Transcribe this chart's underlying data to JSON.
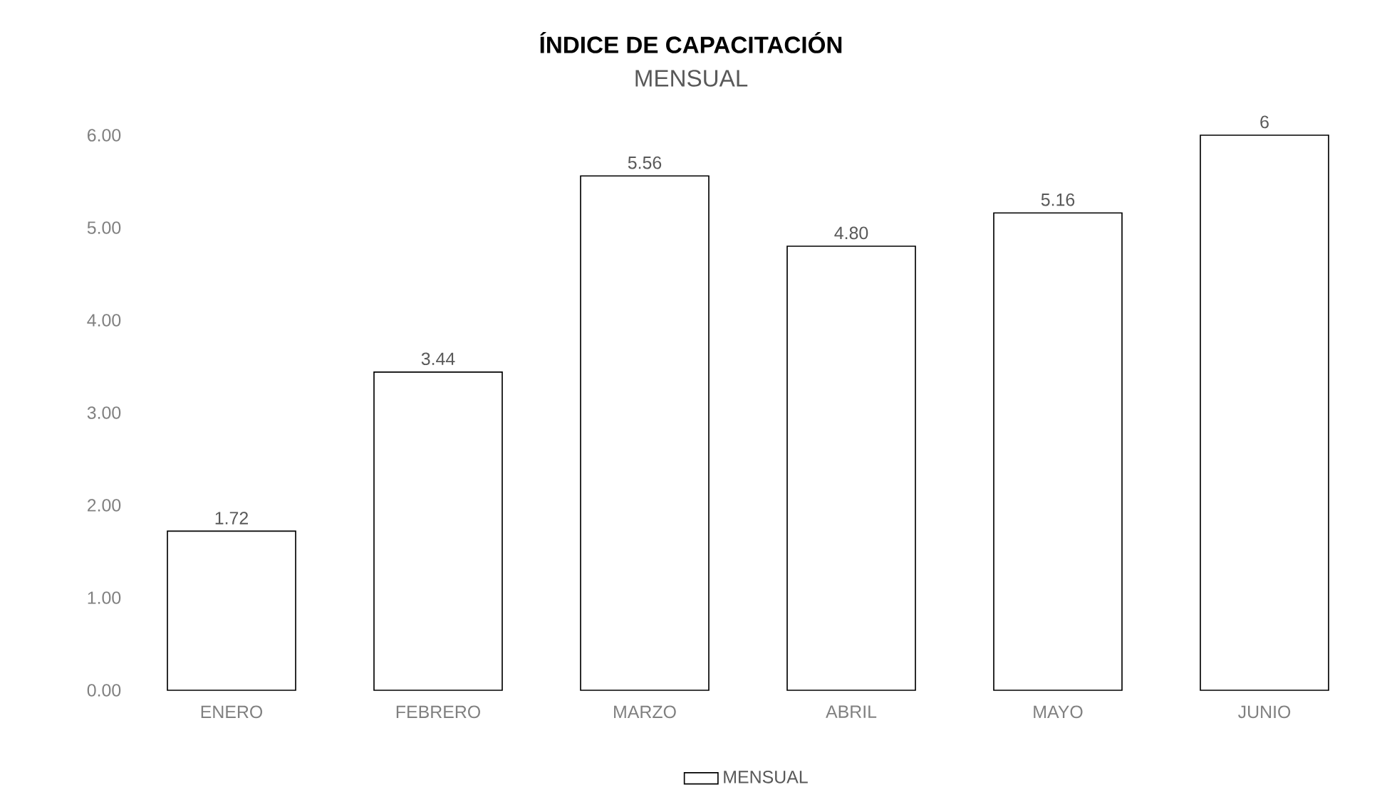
{
  "chart_data": {
    "type": "bar",
    "title": "ÍNDICE DE CAPACITACIÓN",
    "subtitle": "MENSUAL",
    "categories": [
      "ENERO",
      "FEBRERO",
      "MARZO",
      "ABRIL",
      "MAYO",
      "JUNIO"
    ],
    "series": [
      {
        "name": "MENSUAL",
        "color": "#ffffff",
        "values": [
          1.72,
          3.44,
          5.56,
          4.8,
          5.16,
          6
        ],
        "value_labels": [
          "1.72",
          "3.44",
          "5.56",
          "4.80",
          "5.16",
          "6"
        ]
      }
    ],
    "ylim": [
      0,
      6
    ],
    "yticks": [
      {
        "value": 0,
        "label": "0.00"
      },
      {
        "value": 1,
        "label": "1.00"
      },
      {
        "value": 2,
        "label": "2.00"
      },
      {
        "value": 3,
        "label": "3.00"
      },
      {
        "value": 4,
        "label": "4.00"
      },
      {
        "value": 5,
        "label": "5.00"
      },
      {
        "value": 6,
        "label": "6.00"
      }
    ],
    "grid": false,
    "legend": "bottom"
  }
}
